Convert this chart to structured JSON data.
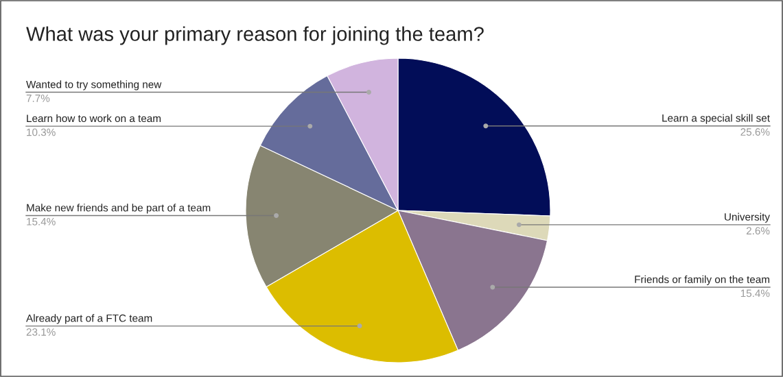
{
  "chart_data": {
    "type": "pie",
    "title": "What was your primary reason for joining the team?",
    "categories": [
      "Learn a special skill set",
      "University",
      "Friends or family on the team",
      "Already part of a FTC team",
      "Make new friends and be part of a team",
      "Learn how to work on a team",
      "Wanted to try something new"
    ],
    "values": [
      25.6,
      2.6,
      15.4,
      23.1,
      15.4,
      10.3,
      7.7
    ],
    "value_labels": [
      "25.6%",
      "2.6%",
      "15.4%",
      "23.1%",
      "15.4%",
      "10.3%",
      "7.7%"
    ],
    "colors": [
      "#020d58",
      "#ddd9b9",
      "#8a758f",
      "#dcbd00",
      "#878571",
      "#656c9b",
      "#d1b4de"
    ],
    "legend": false
  }
}
